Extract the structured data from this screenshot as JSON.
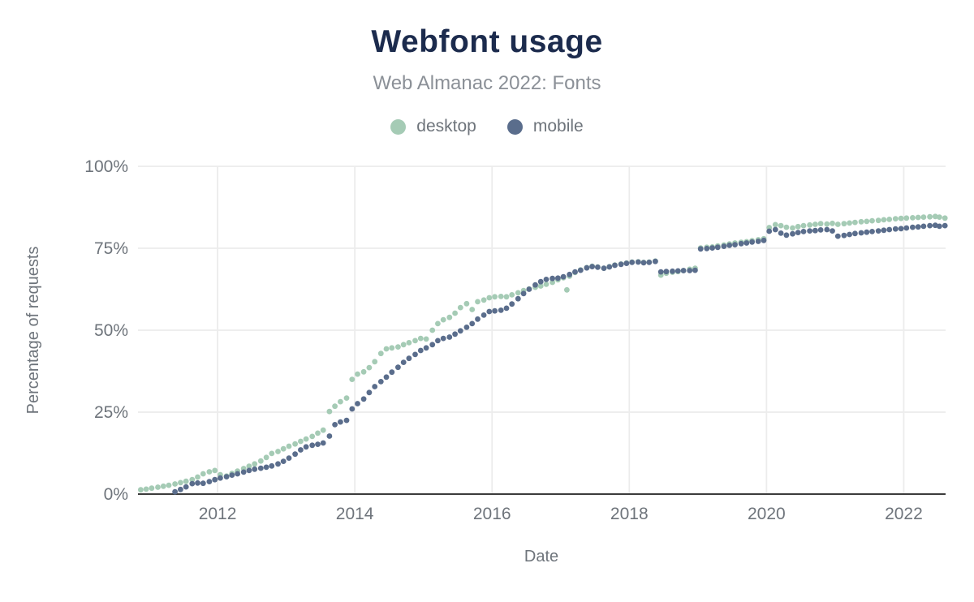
{
  "chart_data": {
    "type": "scatter",
    "title": "Webfont usage",
    "subtitle": "Web Almanac 2022: Fonts",
    "xlabel": "Date",
    "ylabel": "Percentage of requests",
    "x_unit": "decimal_year",
    "xlim": [
      2010.84,
      2022.61
    ],
    "ylim": [
      0,
      100
    ],
    "grid": true,
    "legend_position": "top",
    "xticks": [
      {
        "value": 2012,
        "label": "2012"
      },
      {
        "value": 2014,
        "label": "2014"
      },
      {
        "value": 2016,
        "label": "2016"
      },
      {
        "value": 2018,
        "label": "2018"
      },
      {
        "value": 2020,
        "label": "2020"
      },
      {
        "value": 2022,
        "label": "2022"
      }
    ],
    "yticks": [
      {
        "value": 0,
        "label": "0%"
      },
      {
        "value": 25,
        "label": "25%"
      },
      {
        "value": 50,
        "label": "50%"
      },
      {
        "value": 75,
        "label": "75%"
      },
      {
        "value": 100,
        "label": "100%"
      }
    ],
    "series": [
      {
        "name": "desktop",
        "color": "#a5cbb5",
        "points": [
          [
            2010.88,
            1.3
          ],
          [
            2010.96,
            1.5
          ],
          [
            2011.04,
            1.8
          ],
          [
            2011.13,
            2.1
          ],
          [
            2011.21,
            2.4
          ],
          [
            2011.29,
            2.7
          ],
          [
            2011.38,
            3.1
          ],
          [
            2011.46,
            3.5
          ],
          [
            2011.54,
            3.9
          ],
          [
            2011.63,
            4.4
          ],
          [
            2011.71,
            5.2
          ],
          [
            2011.79,
            6.2
          ],
          [
            2011.88,
            6.8
          ],
          [
            2011.96,
            7.2
          ],
          [
            2012.04,
            5.9
          ],
          [
            2012.13,
            5.5
          ],
          [
            2012.21,
            6.3
          ],
          [
            2012.29,
            7.0
          ],
          [
            2012.38,
            7.8
          ],
          [
            2012.46,
            8.5
          ],
          [
            2012.54,
            9.2
          ],
          [
            2012.63,
            10.1
          ],
          [
            2012.71,
            11.2
          ],
          [
            2012.79,
            12.4
          ],
          [
            2012.88,
            13.0
          ],
          [
            2012.96,
            13.8
          ],
          [
            2013.04,
            14.6
          ],
          [
            2013.13,
            15.3
          ],
          [
            2013.21,
            16.1
          ],
          [
            2013.29,
            16.8
          ],
          [
            2013.38,
            17.6
          ],
          [
            2013.46,
            18.6
          ],
          [
            2013.54,
            19.5
          ],
          [
            2013.63,
            25.2
          ],
          [
            2013.71,
            26.8
          ],
          [
            2013.79,
            28.2
          ],
          [
            2013.88,
            29.3
          ],
          [
            2013.96,
            35.0
          ],
          [
            2014.04,
            36.6
          ],
          [
            2014.13,
            37.3
          ],
          [
            2014.21,
            38.6
          ],
          [
            2014.29,
            40.4
          ],
          [
            2014.38,
            42.9
          ],
          [
            2014.46,
            44.3
          ],
          [
            2014.54,
            44.6
          ],
          [
            2014.63,
            44.9
          ],
          [
            2014.71,
            45.6
          ],
          [
            2014.79,
            46.2
          ],
          [
            2014.88,
            46.8
          ],
          [
            2014.96,
            47.5
          ],
          [
            2015.04,
            47.3
          ],
          [
            2015.13,
            50.0
          ],
          [
            2015.21,
            52.0
          ],
          [
            2015.29,
            53.2
          ],
          [
            2015.38,
            53.9
          ],
          [
            2015.46,
            55.2
          ],
          [
            2015.54,
            56.9
          ],
          [
            2015.63,
            58.1
          ],
          [
            2015.71,
            56.3
          ],
          [
            2015.79,
            58.7
          ],
          [
            2015.88,
            59.2
          ],
          [
            2015.96,
            59.9
          ],
          [
            2016.04,
            60.2
          ],
          [
            2016.13,
            60.3
          ],
          [
            2016.21,
            60.2
          ],
          [
            2016.29,
            60.8
          ],
          [
            2016.38,
            61.4
          ],
          [
            2016.46,
            62.1
          ],
          [
            2016.54,
            62.6
          ],
          [
            2016.63,
            63.1
          ],
          [
            2016.71,
            63.5
          ],
          [
            2016.79,
            64.0
          ],
          [
            2016.88,
            64.6
          ],
          [
            2016.96,
            65.4
          ],
          [
            2017.04,
            66.0
          ],
          [
            2017.09,
            62.3
          ],
          [
            2017.13,
            66.5
          ],
          [
            2017.21,
            67.6
          ],
          [
            2017.29,
            68.4
          ],
          [
            2017.38,
            69.1
          ],
          [
            2017.46,
            69.5
          ],
          [
            2017.54,
            69.3
          ],
          [
            2017.63,
            68.9
          ],
          [
            2017.71,
            69.4
          ],
          [
            2017.79,
            69.9
          ],
          [
            2017.88,
            70.2
          ],
          [
            2017.96,
            70.5
          ],
          [
            2018.04,
            70.8
          ],
          [
            2018.13,
            70.9
          ],
          [
            2018.21,
            70.7
          ],
          [
            2018.29,
            70.8
          ],
          [
            2018.38,
            71.1
          ],
          [
            2018.46,
            66.8
          ],
          [
            2018.54,
            67.4
          ],
          [
            2018.63,
            67.7
          ],
          [
            2018.71,
            67.9
          ],
          [
            2018.79,
            68.2
          ],
          [
            2018.88,
            68.6
          ],
          [
            2018.96,
            68.9
          ],
          [
            2019.04,
            75.1
          ],
          [
            2019.13,
            75.3
          ],
          [
            2019.21,
            75.4
          ],
          [
            2019.29,
            75.7
          ],
          [
            2019.38,
            76.0
          ],
          [
            2019.46,
            76.3
          ],
          [
            2019.54,
            76.6
          ],
          [
            2019.63,
            76.8
          ],
          [
            2019.71,
            77.0
          ],
          [
            2019.79,
            77.3
          ],
          [
            2019.88,
            77.6
          ],
          [
            2019.96,
            77.9
          ],
          [
            2020.04,
            81.3
          ],
          [
            2020.13,
            82.2
          ],
          [
            2020.21,
            81.9
          ],
          [
            2020.29,
            81.4
          ],
          [
            2020.38,
            81.2
          ],
          [
            2020.46,
            81.6
          ],
          [
            2020.54,
            81.9
          ],
          [
            2020.63,
            82.1
          ],
          [
            2020.71,
            82.3
          ],
          [
            2020.79,
            82.5
          ],
          [
            2020.88,
            82.4
          ],
          [
            2020.96,
            82.6
          ],
          [
            2021.04,
            82.3
          ],
          [
            2021.13,
            82.5
          ],
          [
            2021.21,
            82.7
          ],
          [
            2021.29,
            82.9
          ],
          [
            2021.38,
            83.1
          ],
          [
            2021.46,
            83.2
          ],
          [
            2021.54,
            83.4
          ],
          [
            2021.63,
            83.5
          ],
          [
            2021.71,
            83.7
          ],
          [
            2021.79,
            83.8
          ],
          [
            2021.88,
            84.0
          ],
          [
            2021.96,
            84.1
          ],
          [
            2022.04,
            84.2
          ],
          [
            2022.13,
            84.3
          ],
          [
            2022.21,
            84.4
          ],
          [
            2022.29,
            84.5
          ],
          [
            2022.38,
            84.6
          ],
          [
            2022.46,
            84.7
          ],
          [
            2022.52,
            84.5
          ],
          [
            2022.6,
            84.2
          ]
        ]
      },
      {
        "name": "mobile",
        "color": "#5a6d8c",
        "points": [
          [
            2011.38,
            0.7
          ],
          [
            2011.46,
            1.4
          ],
          [
            2011.54,
            2.2
          ],
          [
            2011.63,
            3.2
          ],
          [
            2011.71,
            3.4
          ],
          [
            2011.79,
            3.3
          ],
          [
            2011.88,
            3.8
          ],
          [
            2011.96,
            4.4
          ],
          [
            2012.04,
            4.9
          ],
          [
            2012.13,
            5.3
          ],
          [
            2012.21,
            5.8
          ],
          [
            2012.29,
            6.2
          ],
          [
            2012.38,
            6.7
          ],
          [
            2012.46,
            7.2
          ],
          [
            2012.54,
            7.6
          ],
          [
            2012.63,
            7.9
          ],
          [
            2012.71,
            8.2
          ],
          [
            2012.79,
            8.6
          ],
          [
            2012.88,
            9.2
          ],
          [
            2012.96,
            10.0
          ],
          [
            2013.04,
            11.0
          ],
          [
            2013.13,
            12.2
          ],
          [
            2013.21,
            13.5
          ],
          [
            2013.29,
            14.4
          ],
          [
            2013.38,
            14.9
          ],
          [
            2013.46,
            15.2
          ],
          [
            2013.54,
            15.6
          ],
          [
            2013.63,
            17.7
          ],
          [
            2013.71,
            21.2
          ],
          [
            2013.79,
            22.0
          ],
          [
            2013.88,
            22.5
          ],
          [
            2013.96,
            26.0
          ],
          [
            2014.04,
            27.6
          ],
          [
            2014.13,
            29.0
          ],
          [
            2014.21,
            31.0
          ],
          [
            2014.29,
            32.8
          ],
          [
            2014.38,
            34.3
          ],
          [
            2014.46,
            35.7
          ],
          [
            2014.54,
            37.2
          ],
          [
            2014.63,
            38.7
          ],
          [
            2014.71,
            40.2
          ],
          [
            2014.79,
            41.4
          ],
          [
            2014.88,
            42.6
          ],
          [
            2014.96,
            43.8
          ],
          [
            2015.04,
            44.6
          ],
          [
            2015.13,
            45.6
          ],
          [
            2015.21,
            46.8
          ],
          [
            2015.29,
            47.5
          ],
          [
            2015.38,
            47.9
          ],
          [
            2015.46,
            48.8
          ],
          [
            2015.54,
            49.8
          ],
          [
            2015.63,
            50.9
          ],
          [
            2015.71,
            52.0
          ],
          [
            2015.79,
            53.4
          ],
          [
            2015.88,
            54.6
          ],
          [
            2015.96,
            55.7
          ],
          [
            2016.04,
            55.9
          ],
          [
            2016.13,
            56.1
          ],
          [
            2016.21,
            56.7
          ],
          [
            2016.29,
            58.0
          ],
          [
            2016.38,
            59.6
          ],
          [
            2016.46,
            61.2
          ],
          [
            2016.54,
            62.5
          ],
          [
            2016.63,
            63.8
          ],
          [
            2016.71,
            64.8
          ],
          [
            2016.79,
            65.5
          ],
          [
            2016.88,
            65.8
          ],
          [
            2016.96,
            65.9
          ],
          [
            2017.04,
            66.3
          ],
          [
            2017.13,
            67.0
          ],
          [
            2017.21,
            67.8
          ],
          [
            2017.29,
            68.3
          ],
          [
            2017.38,
            69.0
          ],
          [
            2017.46,
            69.4
          ],
          [
            2017.54,
            69.2
          ],
          [
            2017.63,
            68.9
          ],
          [
            2017.71,
            69.3
          ],
          [
            2017.79,
            69.8
          ],
          [
            2017.88,
            70.1
          ],
          [
            2017.96,
            70.4
          ],
          [
            2018.04,
            70.7
          ],
          [
            2018.13,
            70.8
          ],
          [
            2018.21,
            70.6
          ],
          [
            2018.29,
            70.7
          ],
          [
            2018.38,
            71.0
          ],
          [
            2018.46,
            67.8
          ],
          [
            2018.54,
            67.9
          ],
          [
            2018.63,
            68.0
          ],
          [
            2018.71,
            68.1
          ],
          [
            2018.79,
            68.2
          ],
          [
            2018.88,
            68.2
          ],
          [
            2018.96,
            68.3
          ],
          [
            2019.04,
            74.8
          ],
          [
            2019.13,
            74.9
          ],
          [
            2019.21,
            75.1
          ],
          [
            2019.29,
            75.3
          ],
          [
            2019.38,
            75.6
          ],
          [
            2019.46,
            75.9
          ],
          [
            2019.54,
            76.1
          ],
          [
            2019.63,
            76.4
          ],
          [
            2019.71,
            76.6
          ],
          [
            2019.79,
            76.9
          ],
          [
            2019.88,
            77.1
          ],
          [
            2019.96,
            77.4
          ],
          [
            2020.04,
            80.2
          ],
          [
            2020.13,
            80.7
          ],
          [
            2020.21,
            79.6
          ],
          [
            2020.29,
            79.0
          ],
          [
            2020.38,
            79.4
          ],
          [
            2020.46,
            79.8
          ],
          [
            2020.54,
            80.1
          ],
          [
            2020.63,
            80.3
          ],
          [
            2020.71,
            80.4
          ],
          [
            2020.79,
            80.6
          ],
          [
            2020.88,
            80.7
          ],
          [
            2020.96,
            80.3
          ],
          [
            2021.04,
            78.7
          ],
          [
            2021.13,
            78.9
          ],
          [
            2021.21,
            79.2
          ],
          [
            2021.29,
            79.5
          ],
          [
            2021.38,
            79.7
          ],
          [
            2021.46,
            79.9
          ],
          [
            2021.54,
            80.1
          ],
          [
            2021.63,
            80.3
          ],
          [
            2021.71,
            80.5
          ],
          [
            2021.79,
            80.7
          ],
          [
            2021.88,
            80.9
          ],
          [
            2021.96,
            81.0
          ],
          [
            2022.04,
            81.2
          ],
          [
            2022.13,
            81.4
          ],
          [
            2022.21,
            81.5
          ],
          [
            2022.29,
            81.7
          ],
          [
            2022.38,
            81.9
          ],
          [
            2022.46,
            82.0
          ],
          [
            2022.52,
            81.7
          ],
          [
            2022.6,
            81.9
          ]
        ]
      }
    ]
  },
  "colors": {
    "title": "#1c2b4d",
    "subtitle": "#8b9097",
    "tick_text": "#6e747b",
    "gridline": "#ececec",
    "axis_line": "#3c3c3c",
    "desktop": "#a5cbb5",
    "mobile": "#5a6d8c",
    "background": "#ffffff"
  }
}
